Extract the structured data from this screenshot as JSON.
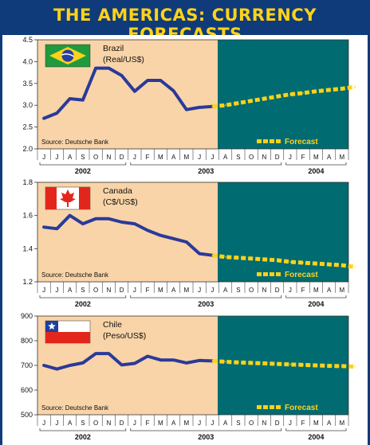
{
  "title": "THE AMERICAS: CURRENCY FORECASTS",
  "colors": {
    "header_bg": "#0f3b7a",
    "title_text": "#ffd21a",
    "history_bg": "#f9d4a8",
    "forecast_bg": "#006b70",
    "line": "#2a3a9a",
    "forecast_line": "#ffd21a"
  },
  "forecast_label": "Forecast",
  "source": "Source: Deutsche Bank",
  "chart_data": [
    {
      "type": "line",
      "country": "Brazil",
      "flag": "brazil-flag",
      "currency": "(Real/US$)",
      "ylim": [
        2.0,
        4.5
      ],
      "yticks": [
        "2.0",
        "2.5",
        "3.0",
        "3.5",
        "4.0",
        "4.5"
      ],
      "months": [
        "J",
        "J",
        "A",
        "S",
        "O",
        "N",
        "D",
        "J",
        "F",
        "M",
        "A",
        "M",
        "J",
        "J",
        "A",
        "S",
        "O",
        "N",
        "D",
        "J",
        "F",
        "M",
        "A",
        "M"
      ],
      "years": [
        "2002",
        "2003",
        "2004"
      ],
      "history": [
        2.7,
        2.82,
        3.15,
        3.12,
        3.85,
        3.85,
        3.68,
        3.32,
        3.57,
        3.57,
        3.33,
        2.9,
        2.95,
        2.97
      ],
      "forecast": [
        2.97,
        3.0,
        3.05,
        3.1,
        3.15,
        3.2,
        3.25,
        3.28,
        3.32,
        3.35,
        3.38,
        3.42
      ]
    },
    {
      "type": "line",
      "country": "Canada",
      "flag": "canada-flag",
      "currency": "(C$/US$)",
      "ylim": [
        1.2,
        1.8
      ],
      "yticks": [
        "1.2",
        "1.4",
        "1.6",
        "1.8"
      ],
      "months": [
        "J",
        "J",
        "A",
        "S",
        "O",
        "N",
        "D",
        "J",
        "F",
        "M",
        "A",
        "M",
        "J",
        "J",
        "A",
        "S",
        "O",
        "N",
        "D",
        "J",
        "F",
        "M",
        "A",
        "M"
      ],
      "years": [
        "2002",
        "2003",
        "2004"
      ],
      "history": [
        1.53,
        1.52,
        1.6,
        1.55,
        1.58,
        1.58,
        1.56,
        1.55,
        1.51,
        1.48,
        1.46,
        1.44,
        1.37,
        1.36
      ],
      "forecast": [
        1.36,
        1.35,
        1.345,
        1.34,
        1.335,
        1.33,
        1.32,
        1.315,
        1.31,
        1.305,
        1.3,
        1.29
      ]
    },
    {
      "type": "line",
      "country": "Chile",
      "flag": "chile-flag",
      "currency": "(Peso/US$)",
      "ylim": [
        500,
        900
      ],
      "yticks": [
        "500",
        "600",
        "700",
        "800",
        "900"
      ],
      "months": [
        "J",
        "J",
        "A",
        "S",
        "O",
        "N",
        "D",
        "J",
        "F",
        "M",
        "A",
        "M",
        "J",
        "J",
        "A",
        "S",
        "O",
        "N",
        "D",
        "J",
        "F",
        "M",
        "A",
        "M"
      ],
      "years": [
        "2002",
        "2003",
        "2004"
      ],
      "history": [
        700,
        685,
        700,
        710,
        748,
        748,
        702,
        708,
        737,
        722,
        722,
        710,
        720,
        718
      ],
      "forecast": [
        718,
        715,
        712,
        710,
        708,
        706,
        704,
        702,
        700,
        698,
        697,
        695
      ]
    }
  ]
}
